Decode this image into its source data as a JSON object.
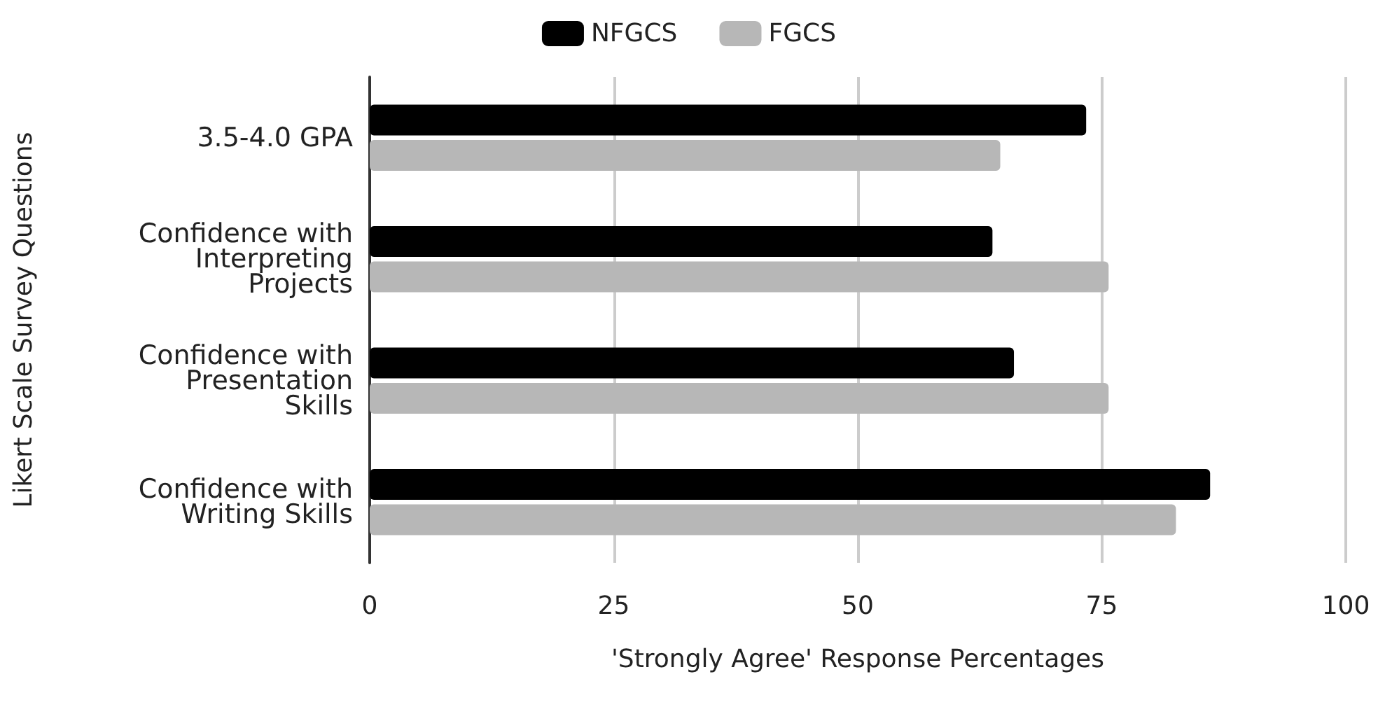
{
  "chart_data": {
    "type": "bar",
    "orientation": "horizontal",
    "xlabel": "'Strongly Agree' Response Percentages",
    "ylabel": "Likert Scale Survey Questions",
    "categories": [
      "3.5-4.0 GPA",
      "Confidence with\nInterpreting\nProjects",
      "Confidence with\nPresentation\nSkills",
      "Confidence with\nWriting Skills"
    ],
    "series": [
      {
        "name": "NFGCS",
        "color": "#000000",
        "values": [
          73.4,
          63.8,
          66.0,
          86.1
        ]
      },
      {
        "name": "FGCS",
        "color": "#b7b7b7",
        "values": [
          64.6,
          75.7,
          75.7,
          82.6
        ]
      }
    ],
    "xlim": [
      0,
      100
    ],
    "xticks": [
      0,
      25,
      50,
      75,
      100
    ],
    "grid": "x",
    "legend": "top"
  }
}
